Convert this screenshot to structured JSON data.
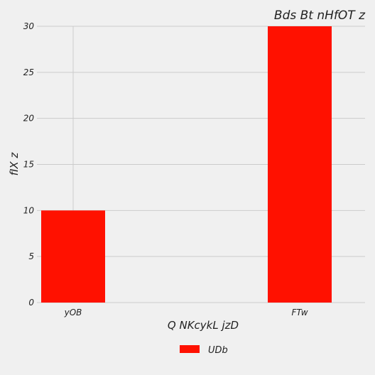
{
  "chart_data": {
    "type": "bar",
    "title": "Bds Bt nHfOT z",
    "xlabel": "Q  NKcykL jzD",
    "ylabel": "fIX z",
    "categories": [
      "yOB",
      "FTw"
    ],
    "series": [
      {
        "name": "UDb",
        "values": [
          10,
          30
        ],
        "color": "#ff1100"
      }
    ],
    "ylim": [
      0,
      30
    ],
    "yticks": [
      0,
      5,
      10,
      15,
      20,
      25,
      30
    ],
    "grid": true,
    "legend_position": "bottom-center"
  },
  "colors": {
    "background": "#f0f0f0",
    "grid": "#cbcbcb",
    "bar": "#ff1100"
  }
}
